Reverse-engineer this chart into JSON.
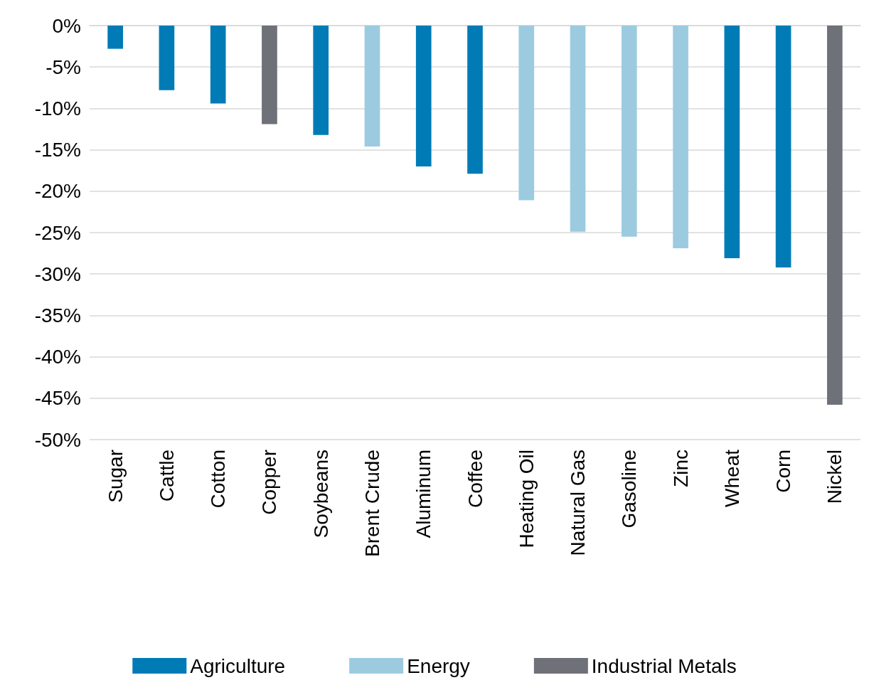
{
  "chart_data": {
    "type": "bar",
    "categories": [
      "Sugar",
      "Cattle",
      "Cotton",
      "Copper",
      "Soybeans",
      "Brent Crude",
      "Aluminum",
      "Coffee",
      "Heating Oil",
      "Natural Gas",
      "Gasoline",
      "Zinc",
      "Wheat",
      "Corn",
      "Nickel"
    ],
    "series": [
      {
        "name": "Agriculture",
        "color": "#007bb5",
        "values": [
          -2.8,
          -7.8,
          -9.4,
          null,
          -13.2,
          null,
          -17.0,
          -17.9,
          null,
          null,
          null,
          null,
          -28.1,
          -29.2,
          null
        ]
      },
      {
        "name": "Energy",
        "color": "#9ccbe0",
        "values": [
          null,
          null,
          null,
          null,
          null,
          -14.6,
          null,
          null,
          -21.1,
          -24.9,
          -25.5,
          -26.9,
          null,
          null,
          null
        ]
      },
      {
        "name": "Industrial Metals",
        "color": "#6e7177",
        "values": [
          null,
          null,
          null,
          -11.9,
          null,
          null,
          null,
          null,
          null,
          null,
          null,
          null,
          null,
          null,
          -45.8
        ]
      }
    ],
    "ylim": [
      -50,
      0
    ],
    "yticks": [
      {
        "value": 0,
        "label": "0%"
      },
      {
        "value": -5,
        "label": "-5%"
      },
      {
        "value": -10,
        "label": "-10%"
      },
      {
        "value": -15,
        "label": "-15%"
      },
      {
        "value": -20,
        "label": "-20%"
      },
      {
        "value": -25,
        "label": "-25%"
      },
      {
        "value": -30,
        "label": "-30%"
      },
      {
        "value": -35,
        "label": "-35%"
      },
      {
        "value": -40,
        "label": "-40%"
      },
      {
        "value": -45,
        "label": "-45%"
      },
      {
        "value": -50,
        "label": "-50%"
      }
    ],
    "grid": "y",
    "legend": "bottom"
  }
}
